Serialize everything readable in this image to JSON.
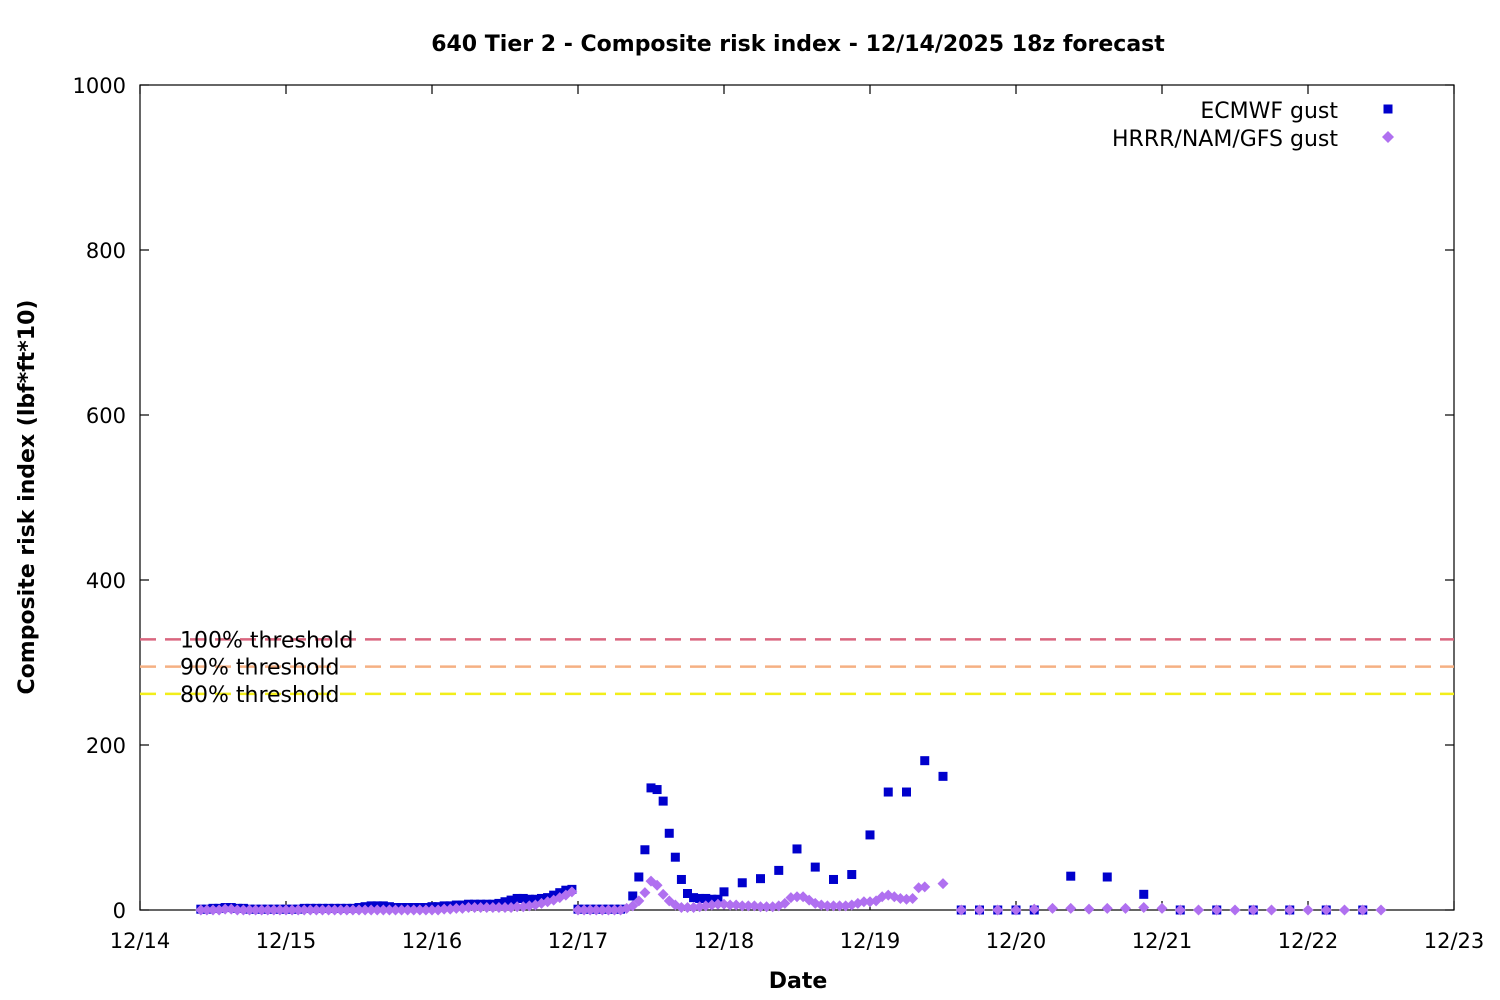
{
  "chart_data": {
    "type": "scatter",
    "title": "640 Tier 2 - Composite risk index - 12/14/2025 18z forecast",
    "xlabel": "Date",
    "ylabel": "Composite risk index (lbf*ft*10)",
    "xlim": [
      "12/14",
      "12/23"
    ],
    "ylim": [
      0,
      1000
    ],
    "x_ticks": [
      "12/14",
      "12/15",
      "12/16",
      "12/17",
      "12/18",
      "12/19",
      "12/20",
      "12/21",
      "12/22",
      "12/23"
    ],
    "y_ticks": [
      0,
      200,
      400,
      600,
      800,
      1000
    ],
    "legend_position": "top-right",
    "grid": false,
    "thresholds": [
      {
        "label": "100% threshold",
        "value": 328,
        "color": "#d9667f"
      },
      {
        "label": "90% threshold",
        "value": 295,
        "color": "#f5b083"
      },
      {
        "label": "80% threshold",
        "value": 262,
        "color": "#f2ee1a"
      }
    ],
    "series": [
      {
        "name": "ECMWF gust",
        "marker": "square",
        "color": "#0000cc",
        "points": [
          [
            "12/14 10:00",
            1
          ],
          [
            "12/14 11:00",
            1
          ],
          [
            "12/14 12:00",
            2
          ],
          [
            "12/14 13:00",
            2
          ],
          [
            "12/14 14:00",
            3
          ],
          [
            "12/14 15:00",
            3
          ],
          [
            "12/14 16:00",
            2
          ],
          [
            "12/14 17:00",
            2
          ],
          [
            "12/14 18:00",
            1
          ],
          [
            "12/14 19:00",
            1
          ],
          [
            "12/14 20:00",
            1
          ],
          [
            "12/14 21:00",
            1
          ],
          [
            "12/14 22:00",
            1
          ],
          [
            "12/14 23:00",
            1
          ],
          [
            "12/15 00:00",
            1
          ],
          [
            "12/15 01:00",
            1
          ],
          [
            "12/15 02:00",
            1
          ],
          [
            "12/15 03:00",
            2
          ],
          [
            "12/15 04:00",
            2
          ],
          [
            "12/15 05:00",
            2
          ],
          [
            "12/15 06:00",
            2
          ],
          [
            "12/15 07:00",
            2
          ],
          [
            "12/15 08:00",
            2
          ],
          [
            "12/15 09:00",
            2
          ],
          [
            "12/15 10:00",
            2
          ],
          [
            "12/15 11:00",
            2
          ],
          [
            "12/15 12:00",
            3
          ],
          [
            "12/15 13:00",
            4
          ],
          [
            "12/15 14:00",
            5
          ],
          [
            "12/15 15:00",
            5
          ],
          [
            "12/15 16:00",
            5
          ],
          [
            "12/15 17:00",
            4
          ],
          [
            "12/15 18:00",
            3
          ],
          [
            "12/15 19:00",
            3
          ],
          [
            "12/15 20:00",
            3
          ],
          [
            "12/15 21:00",
            3
          ],
          [
            "12/15 22:00",
            3
          ],
          [
            "12/15 23:00",
            3
          ],
          [
            "12/16 00:00",
            4
          ],
          [
            "12/16 01:00",
            4
          ],
          [
            "12/16 02:00",
            5
          ],
          [
            "12/16 03:00",
            5
          ],
          [
            "12/16 04:00",
            6
          ],
          [
            "12/16 05:00",
            6
          ],
          [
            "12/16 06:00",
            7
          ],
          [
            "12/16 07:00",
            7
          ],
          [
            "12/16 08:00",
            7
          ],
          [
            "12/16 09:00",
            7
          ],
          [
            "12/16 10:00",
            7
          ],
          [
            "12/16 11:00",
            8
          ],
          [
            "12/16 12:00",
            10
          ],
          [
            "12/16 13:00",
            12
          ],
          [
            "12/16 14:00",
            14
          ],
          [
            "12/16 15:00",
            14
          ],
          [
            "12/16 16:00",
            13
          ],
          [
            "12/16 17:00",
            13
          ],
          [
            "12/16 18:00",
            14
          ],
          [
            "12/16 19:00",
            15
          ],
          [
            "12/16 20:00",
            18
          ],
          [
            "12/16 21:00",
            21
          ],
          [
            "12/16 22:00",
            24
          ],
          [
            "12/16 23:00",
            25
          ],
          [
            "12/17 00:00",
            1
          ],
          [
            "12/17 01:00",
            1
          ],
          [
            "12/17 02:00",
            1
          ],
          [
            "12/17 03:00",
            1
          ],
          [
            "12/17 04:00",
            1
          ],
          [
            "12/17 05:00",
            1
          ],
          [
            "12/17 06:00",
            1
          ],
          [
            "12/17 07:00",
            1
          ],
          [
            "12/17 09:00",
            17
          ],
          [
            "12/17 10:00",
            40
          ],
          [
            "12/17 11:00",
            73
          ],
          [
            "12/17 12:00",
            148
          ],
          [
            "12/17 13:00",
            146
          ],
          [
            "12/17 14:00",
            132
          ],
          [
            "12/17 15:00",
            93
          ],
          [
            "12/17 16:00",
            64
          ],
          [
            "12/17 17:00",
            37
          ],
          [
            "12/17 18:00",
            20
          ],
          [
            "12/17 19:00",
            15
          ],
          [
            "12/17 20:00",
            14
          ],
          [
            "12/17 21:00",
            14
          ],
          [
            "12/17 22:00",
            13
          ],
          [
            "12/17 23:00",
            13
          ],
          [
            "12/18 00:00",
            22
          ],
          [
            "12/18 03:00",
            33
          ],
          [
            "12/18 06:00",
            38
          ],
          [
            "12/18 09:00",
            48
          ],
          [
            "12/18 12:00",
            74
          ],
          [
            "12/18 15:00",
            52
          ],
          [
            "12/18 18:00",
            37
          ],
          [
            "12/18 21:00",
            43
          ],
          [
            "12/19 00:00",
            91
          ],
          [
            "12/19 03:00",
            143
          ],
          [
            "12/19 06:00",
            143
          ],
          [
            "12/19 09:00",
            181
          ],
          [
            "12/19 12:00",
            162
          ],
          [
            "12/19 15:00",
            0
          ],
          [
            "12/19 18:00",
            0
          ],
          [
            "12/19 21:00",
            0
          ],
          [
            "12/20 00:00",
            0
          ],
          [
            "12/20 03:00",
            0
          ],
          [
            "12/20 09:00",
            41
          ],
          [
            "12/20 15:00",
            40
          ],
          [
            "12/20 21:00",
            19
          ],
          [
            "12/21 03:00",
            0
          ],
          [
            "12/21 09:00",
            0
          ],
          [
            "12/21 15:00",
            0
          ],
          [
            "12/21 21:00",
            0
          ],
          [
            "12/22 03:00",
            0
          ],
          [
            "12/22 09:00",
            0
          ]
        ]
      },
      {
        "name": "HRRR/NAM/GFS gust",
        "marker": "diamond",
        "color": "#b070f0",
        "points": [
          [
            "12/14 10:00",
            0
          ],
          [
            "12/14 11:00",
            0
          ],
          [
            "12/14 12:00",
            0
          ],
          [
            "12/14 13:00",
            0
          ],
          [
            "12/14 14:00",
            1
          ],
          [
            "12/14 15:00",
            1
          ],
          [
            "12/14 16:00",
            0
          ],
          [
            "12/14 17:00",
            0
          ],
          [
            "12/14 18:00",
            0
          ],
          [
            "12/14 19:00",
            0
          ],
          [
            "12/14 20:00",
            0
          ],
          [
            "12/14 21:00",
            0
          ],
          [
            "12/14 22:00",
            0
          ],
          [
            "12/14 23:00",
            0
          ],
          [
            "12/15 00:00",
            0
          ],
          [
            "12/15 01:00",
            0
          ],
          [
            "12/15 02:00",
            0
          ],
          [
            "12/15 03:00",
            0
          ],
          [
            "12/15 04:00",
            0
          ],
          [
            "12/15 05:00",
            0
          ],
          [
            "12/15 06:00",
            0
          ],
          [
            "12/15 07:00",
            0
          ],
          [
            "12/15 08:00",
            0
          ],
          [
            "12/15 09:00",
            0
          ],
          [
            "12/15 10:00",
            0
          ],
          [
            "12/15 11:00",
            0
          ],
          [
            "12/15 12:00",
            0
          ],
          [
            "12/15 13:00",
            0
          ],
          [
            "12/15 14:00",
            0
          ],
          [
            "12/15 15:00",
            0
          ],
          [
            "12/15 16:00",
            0
          ],
          [
            "12/15 17:00",
            0
          ],
          [
            "12/15 18:00",
            0
          ],
          [
            "12/15 19:00",
            0
          ],
          [
            "12/15 20:00",
            0
          ],
          [
            "12/15 21:00",
            0
          ],
          [
            "12/15 22:00",
            0
          ],
          [
            "12/15 23:00",
            0
          ],
          [
            "12/16 00:00",
            0
          ],
          [
            "12/16 01:00",
            0
          ],
          [
            "12/16 02:00",
            1
          ],
          [
            "12/16 03:00",
            1
          ],
          [
            "12/16 04:00",
            2
          ],
          [
            "12/16 05:00",
            2
          ],
          [
            "12/16 06:00",
            3
          ],
          [
            "12/16 07:00",
            3
          ],
          [
            "12/16 08:00",
            3
          ],
          [
            "12/16 09:00",
            3
          ],
          [
            "12/16 10:00",
            3
          ],
          [
            "12/16 11:00",
            3
          ],
          [
            "12/16 12:00",
            3
          ],
          [
            "12/16 13:00",
            3
          ],
          [
            "12/16 14:00",
            4
          ],
          [
            "12/16 15:00",
            4
          ],
          [
            "12/16 16:00",
            5
          ],
          [
            "12/16 17:00",
            6
          ],
          [
            "12/16 18:00",
            8
          ],
          [
            "12/16 19:00",
            10
          ],
          [
            "12/16 20:00",
            12
          ],
          [
            "12/16 21:00",
            15
          ],
          [
            "12/16 22:00",
            18
          ],
          [
            "12/16 23:00",
            22
          ],
          [
            "12/17 00:00",
            0
          ],
          [
            "12/17 01:00",
            0
          ],
          [
            "12/17 02:00",
            0
          ],
          [
            "12/17 03:00",
            0
          ],
          [
            "12/17 04:00",
            0
          ],
          [
            "12/17 05:00",
            0
          ],
          [
            "12/17 06:00",
            0
          ],
          [
            "12/17 07:00",
            0
          ],
          [
            "12/17 08:00",
            2
          ],
          [
            "12/17 09:00",
            5
          ],
          [
            "12/17 10:00",
            11
          ],
          [
            "12/17 11:00",
            21
          ],
          [
            "12/17 12:00",
            35
          ],
          [
            "12/17 13:00",
            30
          ],
          [
            "12/17 14:00",
            19
          ],
          [
            "12/17 15:00",
            11
          ],
          [
            "12/17 16:00",
            6
          ],
          [
            "12/17 17:00",
            3
          ],
          [
            "12/17 18:00",
            3
          ],
          [
            "12/17 19:00",
            3
          ],
          [
            "12/17 20:00",
            4
          ],
          [
            "12/17 21:00",
            5
          ],
          [
            "12/17 22:00",
            6
          ],
          [
            "12/17 23:00",
            7
          ],
          [
            "12/18 00:00",
            7
          ],
          [
            "12/18 01:00",
            6
          ],
          [
            "12/18 02:00",
            6
          ],
          [
            "12/18 03:00",
            5
          ],
          [
            "12/18 04:00",
            5
          ],
          [
            "12/18 05:00",
            5
          ],
          [
            "12/18 06:00",
            4
          ],
          [
            "12/18 07:00",
            4
          ],
          [
            "12/18 08:00",
            4
          ],
          [
            "12/18 09:00",
            5
          ],
          [
            "12/18 10:00",
            8
          ],
          [
            "12/18 11:00",
            15
          ],
          [
            "12/18 12:00",
            16
          ],
          [
            "12/18 13:00",
            16
          ],
          [
            "12/18 14:00",
            12
          ],
          [
            "12/18 15:00",
            8
          ],
          [
            "12/18 16:00",
            6
          ],
          [
            "12/18 17:00",
            5
          ],
          [
            "12/18 18:00",
            5
          ],
          [
            "12/18 19:00",
            5
          ],
          [
            "12/18 20:00",
            5
          ],
          [
            "12/18 21:00",
            6
          ],
          [
            "12/18 22:00",
            8
          ],
          [
            "12/18 23:00",
            10
          ],
          [
            "12/19 00:00",
            10
          ],
          [
            "12/19 01:00",
            11
          ],
          [
            "12/19 02:00",
            16
          ],
          [
            "12/19 03:00",
            18
          ],
          [
            "12/19 04:00",
            16
          ],
          [
            "12/19 05:00",
            14
          ],
          [
            "12/19 06:00",
            13
          ],
          [
            "12/19 07:00",
            14
          ],
          [
            "12/19 08:00",
            27
          ],
          [
            "12/19 09:00",
            28
          ],
          [
            "12/19 12:00",
            32
          ],
          [
            "12/19 15:00",
            0
          ],
          [
            "12/19 18:00",
            0
          ],
          [
            "12/19 21:00",
            0
          ],
          [
            "12/20 00:00",
            0
          ],
          [
            "12/20 03:00",
            1
          ],
          [
            "12/20 06:00",
            2
          ],
          [
            "12/20 09:00",
            2
          ],
          [
            "12/20 12:00",
            1
          ],
          [
            "12/20 15:00",
            2
          ],
          [
            "12/20 18:00",
            2
          ],
          [
            "12/20 21:00",
            3
          ],
          [
            "12/21 00:00",
            2
          ],
          [
            "12/21 03:00",
            0
          ],
          [
            "12/21 06:00",
            0
          ],
          [
            "12/21 09:00",
            0
          ],
          [
            "12/21 12:00",
            0
          ],
          [
            "12/21 15:00",
            0
          ],
          [
            "12/21 18:00",
            0
          ],
          [
            "12/21 21:00",
            0
          ],
          [
            "12/22 00:00",
            0
          ],
          [
            "12/22 03:00",
            0
          ],
          [
            "12/22 06:00",
            0
          ],
          [
            "12/22 09:00",
            0
          ],
          [
            "12/22 12:00",
            0
          ]
        ]
      }
    ]
  }
}
